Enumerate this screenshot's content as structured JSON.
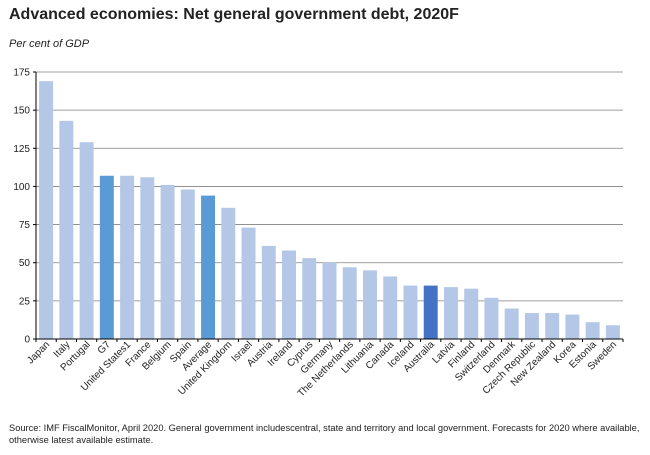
{
  "title": "Advanced economies: Net general government debt, 2020F",
  "subtitle": "Per cent of GDP",
  "footnote": "Source: IMF FiscalMonitor, April 2020.  General government includescentral, state and territory and local government. Forecasts for 2020 where available, otherwise latest available estimate.",
  "colors": {
    "bar_default": "#b4c7e7",
    "bar_average": "#5b9bd5",
    "bar_australia": "#4472c4",
    "gridline": "#808080"
  },
  "chart_data": {
    "type": "bar",
    "title": "Advanced economies: Net general government debt, 2020F",
    "ylabel": "Per cent of GDP",
    "xlabel": "",
    "ylim": [
      0,
      175
    ],
    "yticks": [
      "0",
      "25",
      "50",
      "75",
      "100",
      "125",
      "150",
      "175"
    ],
    "grid": true,
    "categories": [
      "Japan",
      "Italy",
      "Portugal",
      "G7",
      "United States1",
      "France",
      "Belgium",
      "Spain",
      "Average",
      "United Kingdom",
      "Israel",
      "Austria",
      "Ireland",
      "Cyprus",
      "Germany",
      "The Netherlands",
      "Lithuania",
      "Canada",
      "Iceland",
      "Australia",
      "Latvia",
      "Finland",
      "Switzerland",
      "Denmark",
      "Czech Republic",
      "New Zealand",
      "Korea",
      "Estonia",
      "Sweden"
    ],
    "values": [
      169,
      143,
      129,
      107,
      107,
      106,
      101,
      98,
      94,
      86,
      73,
      61,
      58,
      53,
      50,
      47,
      45,
      41,
      35,
      35,
      34,
      33,
      27,
      20,
      17,
      17,
      16,
      11,
      9
    ],
    "highlight": {
      "G7": "bar_average",
      "Average": "bar_average",
      "Australia": "bar_australia"
    }
  }
}
